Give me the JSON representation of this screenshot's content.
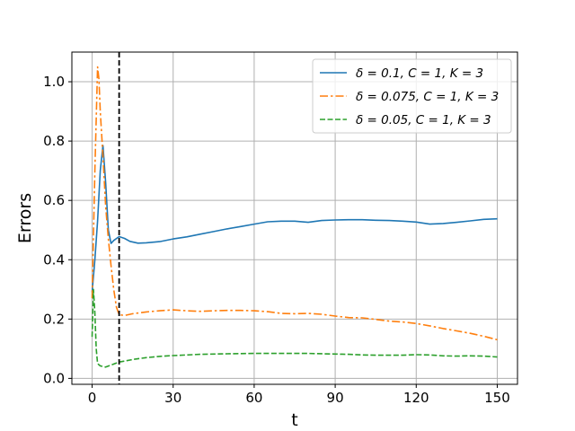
{
  "chart_data": {
    "type": "line",
    "title": "",
    "xlabel": "t",
    "ylabel": "Errors",
    "xlim": [
      -7.5,
      157.5
    ],
    "ylim": [
      -0.02,
      1.1
    ],
    "xticks": [
      0,
      30,
      60,
      90,
      120,
      150
    ],
    "yticks": [
      0.0,
      0.2,
      0.4,
      0.6,
      0.8,
      1.0
    ],
    "xtick_labels": [
      "0",
      "30",
      "60",
      "90",
      "120",
      "150"
    ],
    "ytick_labels": [
      "0.0",
      "0.2",
      "0.4",
      "0.6",
      "0.8",
      "1.0"
    ],
    "grid": true,
    "legend_position": "top-right",
    "vline": {
      "x": 10,
      "style": "dashed",
      "color": "#000000"
    },
    "series": [
      {
        "name": "δ = 0.1, C = 1, K = 3",
        "color": "#1f77b4",
        "style": "solid",
        "points": [
          [
            0,
            0.29
          ],
          [
            1,
            0.4
          ],
          [
            2,
            0.53
          ],
          [
            3,
            0.7
          ],
          [
            4,
            0.785
          ],
          [
            5,
            0.66
          ],
          [
            6,
            0.5
          ],
          [
            7,
            0.455
          ],
          [
            8,
            0.465
          ],
          [
            10,
            0.478
          ],
          [
            12,
            0.472
          ],
          [
            14,
            0.462
          ],
          [
            17,
            0.456
          ],
          [
            20,
            0.457
          ],
          [
            25,
            0.461
          ],
          [
            30,
            0.47
          ],
          [
            35,
            0.477
          ],
          [
            40,
            0.486
          ],
          [
            45,
            0.495
          ],
          [
            50,
            0.504
          ],
          [
            55,
            0.512
          ],
          [
            60,
            0.52
          ],
          [
            65,
            0.528
          ],
          [
            70,
            0.53
          ],
          [
            75,
            0.53
          ],
          [
            80,
            0.526
          ],
          [
            85,
            0.532
          ],
          [
            90,
            0.534
          ],
          [
            95,
            0.535
          ],
          [
            100,
            0.535
          ],
          [
            105,
            0.533
          ],
          [
            110,
            0.532
          ],
          [
            115,
            0.53
          ],
          [
            120,
            0.527
          ],
          [
            125,
            0.52
          ],
          [
            130,
            0.522
          ],
          [
            135,
            0.526
          ],
          [
            140,
            0.531
          ],
          [
            145,
            0.536
          ],
          [
            150,
            0.538
          ]
        ]
      },
      {
        "name": "δ = 0.075, C = 1, K = 3",
        "color": "#ff7f0e",
        "style": "dashdot",
        "points": [
          [
            0,
            0.27
          ],
          [
            1,
            0.7
          ],
          [
            2,
            1.05
          ],
          [
            2.5,
            1.01
          ],
          [
            3,
            0.9
          ],
          [
            4,
            0.75
          ],
          [
            5,
            0.58
          ],
          [
            6,
            0.47
          ],
          [
            7,
            0.38
          ],
          [
            8,
            0.3
          ],
          [
            9,
            0.24
          ],
          [
            10,
            0.215
          ],
          [
            12,
            0.212
          ],
          [
            15,
            0.218
          ],
          [
            20,
            0.224
          ],
          [
            25,
            0.228
          ],
          [
            30,
            0.231
          ],
          [
            35,
            0.228
          ],
          [
            40,
            0.226
          ],
          [
            45,
            0.228
          ],
          [
            50,
            0.229
          ],
          [
            55,
            0.229
          ],
          [
            60,
            0.228
          ],
          [
            65,
            0.225
          ],
          [
            70,
            0.219
          ],
          [
            75,
            0.218
          ],
          [
            80,
            0.219
          ],
          [
            85,
            0.216
          ],
          [
            90,
            0.21
          ],
          [
            95,
            0.205
          ],
          [
            100,
            0.204
          ],
          [
            105,
            0.199
          ],
          [
            110,
            0.193
          ],
          [
            115,
            0.19
          ],
          [
            120,
            0.185
          ],
          [
            125,
            0.177
          ],
          [
            130,
            0.168
          ],
          [
            135,
            0.16
          ],
          [
            140,
            0.152
          ],
          [
            145,
            0.142
          ],
          [
            150,
            0.13
          ]
        ]
      },
      {
        "name": "δ = 0.05, C = 1, K = 3",
        "color": "#2ca02c",
        "style": "dashed",
        "points": [
          [
            0,
            0.14
          ],
          [
            0.5,
            0.3
          ],
          [
            1,
            0.22
          ],
          [
            1.5,
            0.1
          ],
          [
            2,
            0.05
          ],
          [
            3,
            0.042
          ],
          [
            5,
            0.038
          ],
          [
            7,
            0.045
          ],
          [
            10,
            0.055
          ],
          [
            13,
            0.06
          ],
          [
            16,
            0.065
          ],
          [
            20,
            0.07
          ],
          [
            25,
            0.074
          ],
          [
            30,
            0.077
          ],
          [
            35,
            0.079
          ],
          [
            40,
            0.081
          ],
          [
            45,
            0.082
          ],
          [
            50,
            0.083
          ],
          [
            60,
            0.084
          ],
          [
            70,
            0.084
          ],
          [
            80,
            0.084
          ],
          [
            90,
            0.082
          ],
          [
            95,
            0.081
          ],
          [
            100,
            0.079
          ],
          [
            105,
            0.078
          ],
          [
            110,
            0.078
          ],
          [
            115,
            0.078
          ],
          [
            120,
            0.08
          ],
          [
            125,
            0.079
          ],
          [
            130,
            0.076
          ],
          [
            135,
            0.075
          ],
          [
            140,
            0.076
          ],
          [
            145,
            0.075
          ],
          [
            150,
            0.072
          ]
        ]
      }
    ]
  }
}
